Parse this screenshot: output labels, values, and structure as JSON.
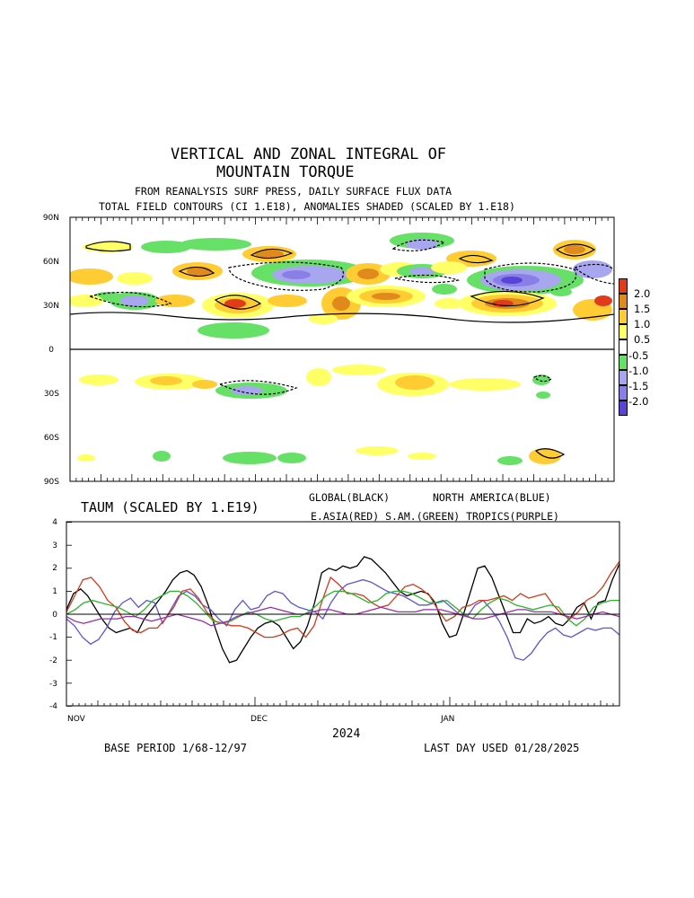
{
  "title_line1": "VERTICAL AND ZONAL INTEGRAL OF",
  "title_line2": "MOUNTAIN TORQUE",
  "subtitle_line1": "FROM REANALYSIS SURF PRESS, DAILY SURFACE FLUX DATA",
  "subtitle_line2": "TOTAL FIELD CONTOURS (CI 1.E18),  ANOMALIES SHADED (SCALED BY 1.E18)",
  "colors": {
    "pos_0_5": "#ffff66",
    "pos_1_0": "#ffcc33",
    "pos_1_5": "#e08a1e",
    "pos_2_0": "#e03c1c",
    "neg_0_5": "#66e066",
    "neg_1_0": "#a9a6f0",
    "neg_1_5": "#8a7fe6",
    "neg_2_0": "#5a44d8",
    "global": "#000000",
    "north_america": "#5b55d6",
    "e_asia": "#d23a1a",
    "s_am": "#2ab52a",
    "tropics": "#9b2aa8"
  },
  "colorbar": {
    "labels": [
      "2.0",
      "1.5",
      "1.0",
      "0.5",
      "-0.5",
      "-1.0",
      "-1.5",
      "-2.0"
    ]
  },
  "hovmoller": {
    "lat_ticks": [
      "90N",
      "60N",
      "30N",
      "0",
      "30S",
      "60S",
      "90S"
    ]
  },
  "taum": {
    "title": "TAUM (SCALED BY 1.E19)",
    "legend_line1_a": "GLOBAL(BLACK)",
    "legend_line1_b": "NORTH AMERICA(BLUE)",
    "legend_line2": "E.ASIA(RED) S.AM.(GREEN) TROPICS(PURPLE)",
    "y_ticks": [
      "4",
      "3",
      "2",
      "1",
      "0",
      "-1",
      "-2",
      "-3",
      "-4"
    ],
    "month_labels": [
      "NOV",
      "DEC",
      "JAN"
    ],
    "year_label": "2024"
  },
  "footer_left": "BASE PERIOD  1/68-12/97",
  "footer_right": "LAST DAY USED 01/28/2025",
  "chart_data": {
    "type": "line",
    "title": "TAUM (SCALED BY 1.E19)",
    "ylim": [
      -4,
      4
    ],
    "x_start": "2024-11-01",
    "x_end": "2025-01-28",
    "series": [
      {
        "name": "GLOBAL(BLACK)",
        "color": "#000000",
        "values": [
          0.2,
          0.9,
          1.1,
          0.8,
          0.3,
          -0.2,
          -0.6,
          -0.8,
          -0.7,
          -0.6,
          -0.8,
          -0.2,
          0.2,
          0.6,
          1.0,
          1.5,
          1.8,
          1.9,
          1.7,
          1.2,
          0.4,
          -0.6,
          -1.5,
          -2.1,
          -2.0,
          -1.5,
          -1.0,
          -0.6,
          -0.4,
          -0.3,
          -0.5,
          -1.0,
          -1.5,
          -1.2,
          -0.5,
          0.5,
          1.8,
          2.0,
          1.9,
          2.1,
          2.0,
          2.1,
          2.5,
          2.4,
          2.1,
          1.8,
          1.4,
          1.0,
          0.8,
          0.9,
          1.0,
          0.9,
          0.5,
          -0.4,
          -1.0,
          -0.9,
          0.0,
          1.0,
          2.0,
          2.1,
          1.6,
          0.8,
          0.0,
          -0.8,
          -0.8,
          -0.2,
          -0.4,
          -0.3,
          -0.1,
          -0.4,
          -0.5,
          -0.2,
          0.3,
          0.5,
          -0.2,
          0.5,
          0.6,
          1.5,
          2.2
        ]
      },
      {
        "name": "NORTH AMERICA(BLUE)",
        "color": "#5b55d6",
        "values": [
          -0.2,
          -0.5,
          -1.0,
          -1.3,
          -1.1,
          -0.6,
          0.1,
          0.5,
          0.7,
          0.3,
          0.6,
          0.5,
          -0.4,
          0.2,
          0.8,
          1.0,
          0.8,
          0.4,
          0.2,
          -0.2,
          -0.5,
          0.2,
          0.6,
          0.2,
          0.3,
          0.8,
          1.0,
          0.9,
          0.5,
          0.3,
          0.2,
          0.1,
          -0.2,
          0.5,
          1.0,
          1.3,
          1.4,
          1.5,
          1.4,
          1.2,
          1.0,
          0.9,
          0.8,
          0.6,
          0.4,
          0.4,
          0.5,
          0.6,
          0.3,
          0.0,
          -0.1,
          0.4,
          0.6,
          0.2,
          -0.3,
          -1.0,
          -1.9,
          -2.0,
          -1.7,
          -1.2,
          -0.8,
          -0.6,
          -0.9,
          -1.0,
          -0.8,
          -0.6,
          -0.7,
          -0.6,
          -0.6,
          -0.9
        ]
      },
      {
        "name": "E.ASIA(RED)",
        "color": "#d23a1a",
        "values": [
          0.1,
          0.8,
          1.5,
          1.6,
          1.2,
          0.6,
          0.3,
          -0.3,
          -0.7,
          -0.8,
          -0.6,
          -0.6,
          -0.2,
          0.3,
          1.0,
          1.1,
          0.7,
          0.1,
          -0.3,
          -0.4,
          -0.5,
          -0.5,
          -0.6,
          -0.8,
          -1.0,
          -1.0,
          -0.9,
          -0.7,
          -0.6,
          -1.0,
          -0.5,
          0.6,
          1.6,
          1.3,
          0.9,
          0.9,
          0.8,
          0.5,
          0.3,
          0.4,
          0.8,
          1.2,
          1.3,
          1.1,
          0.8,
          0.2,
          -0.3,
          -0.1,
          0.3,
          0.4,
          0.6,
          0.6,
          0.7,
          0.8,
          0.6,
          0.9,
          0.7,
          0.8,
          0.9,
          0.4,
          0.0,
          -0.2,
          0.1,
          0.6,
          0.8,
          1.2,
          1.8,
          2.3
        ]
      },
      {
        "name": "S.AM.(GREEN)",
        "color": "#2ab52a",
        "values": [
          0.0,
          0.2,
          0.5,
          0.6,
          0.5,
          0.4,
          0.3,
          0.1,
          -0.1,
          0.2,
          0.6,
          0.8,
          1.0,
          1.0,
          0.8,
          0.5,
          0.1,
          -0.3,
          -0.4,
          -0.3,
          -0.1,
          0.1,
          0.0,
          -0.2,
          -0.3,
          -0.2,
          -0.1,
          -0.1,
          0.1,
          0.4,
          0.8,
          1.0,
          1.0,
          0.9,
          0.7,
          0.5,
          0.6,
          0.9,
          1.0,
          1.0,
          0.9,
          0.7,
          0.5,
          0.5,
          0.6,
          0.3,
          0.0,
          -0.2,
          0.2,
          0.5,
          0.7,
          0.6,
          0.4,
          0.3,
          0.2,
          0.3,
          0.4,
          0.3,
          -0.2,
          -0.5,
          -0.2,
          0.3,
          0.5,
          0.6,
          0.6
        ]
      },
      {
        "name": "TROPICS(PURPLE)",
        "color": "#9b2aa8",
        "values": [
          -0.1,
          -0.3,
          -0.4,
          -0.3,
          -0.2,
          -0.2,
          -0.2,
          -0.1,
          -0.1,
          -0.2,
          -0.3,
          -0.2,
          -0.1,
          0.0,
          -0.1,
          -0.2,
          -0.3,
          -0.5,
          -0.4,
          -0.3,
          -0.1,
          0.0,
          0.1,
          0.2,
          0.3,
          0.2,
          0.1,
          0.0,
          0.0,
          0.1,
          0.2,
          0.2,
          0.1,
          0.0,
          0.0,
          0.1,
          0.2,
          0.3,
          0.2,
          0.1,
          0.1,
          0.1,
          0.2,
          0.2,
          0.2,
          0.1,
          0.0,
          -0.1,
          -0.2,
          -0.2,
          -0.1,
          0.0,
          0.1,
          0.2,
          0.2,
          0.1,
          0.1,
          0.1,
          0.0,
          -0.1,
          -0.2,
          -0.1,
          0.0,
          0.1,
          0.0,
          -0.1
        ]
      }
    ]
  }
}
